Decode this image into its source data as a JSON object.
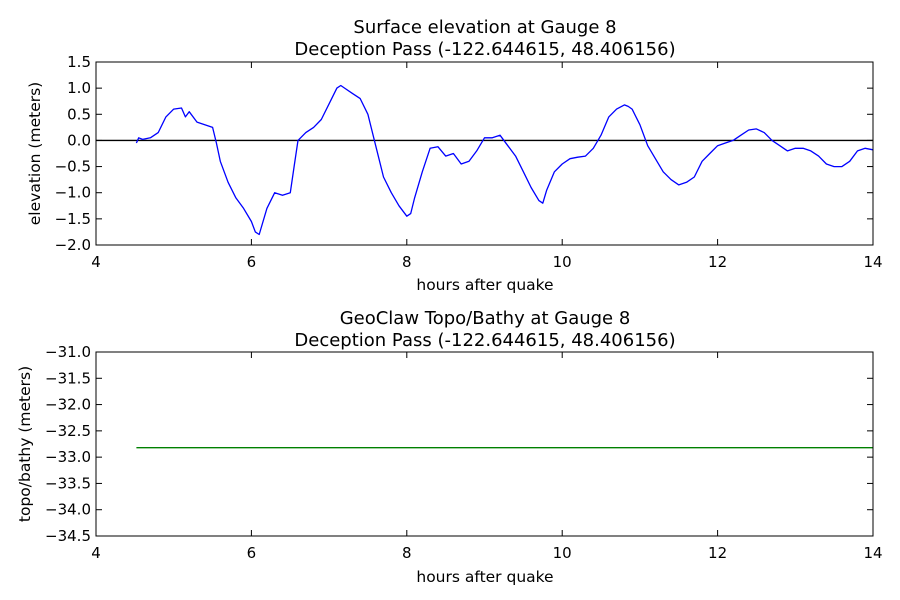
{
  "chart_data": [
    {
      "type": "line",
      "title": "Surface elevation at Gauge 8",
      "subtitle": "Deception Pass  (-122.644615, 48.406156)",
      "xlabel": "hours after quake",
      "ylabel": "elevation (meters)",
      "xlim": [
        4,
        14
      ],
      "ylim": [
        -2.0,
        1.5
      ],
      "xticks": [
        "4",
        "6",
        "8",
        "10",
        "12",
        "14"
      ],
      "yticks": [
        "1.5",
        "1.0",
        "0.5",
        "0.0",
        "−0.5",
        "−1.0",
        "−1.5",
        "−2.0"
      ],
      "reference_line": {
        "y": 0.0,
        "color": "#000000"
      },
      "series": [
        {
          "color": "#0000ff",
          "x": [
            4.52,
            4.55,
            4.6,
            4.7,
            4.8,
            4.9,
            5.0,
            5.1,
            5.15,
            5.2,
            5.3,
            5.4,
            5.5,
            5.55,
            5.6,
            5.7,
            5.8,
            5.9,
            6.0,
            6.05,
            6.1,
            6.2,
            6.3,
            6.4,
            6.5,
            6.55,
            6.6,
            6.7,
            6.8,
            6.9,
            7.0,
            7.1,
            7.15,
            7.2,
            7.3,
            7.4,
            7.5,
            7.6,
            7.7,
            7.8,
            7.9,
            8.0,
            8.05,
            8.1,
            8.2,
            8.3,
            8.4,
            8.5,
            8.6,
            8.7,
            8.8,
            8.9,
            9.0,
            9.1,
            9.2,
            9.3,
            9.4,
            9.5,
            9.6,
            9.7,
            9.75,
            9.8,
            9.9,
            10.0,
            10.1,
            10.2,
            10.3,
            10.4,
            10.5,
            10.6,
            10.7,
            10.8,
            10.85,
            10.9,
            11.0,
            11.1,
            11.2,
            11.3,
            11.4,
            11.5,
            11.6,
            11.7,
            11.8,
            11.9,
            12.0,
            12.1,
            12.2,
            12.3,
            12.4,
            12.5,
            12.6,
            12.7,
            12.8,
            12.9,
            13.0,
            13.1,
            13.2,
            13.3,
            13.4,
            13.5,
            13.6,
            13.7,
            13.8,
            13.9,
            14.0
          ],
          "y": [
            -0.05,
            0.05,
            0.02,
            0.05,
            0.15,
            0.45,
            0.6,
            0.62,
            0.45,
            0.55,
            0.35,
            0.3,
            0.25,
            -0.05,
            -0.4,
            -0.8,
            -1.1,
            -1.3,
            -1.55,
            -1.75,
            -1.8,
            -1.3,
            -1.0,
            -1.05,
            -1.0,
            -0.5,
            0.0,
            0.15,
            0.25,
            0.4,
            0.7,
            1.0,
            1.05,
            1.0,
            0.9,
            0.8,
            0.5,
            -0.1,
            -0.7,
            -1.0,
            -1.25,
            -1.45,
            -1.4,
            -1.1,
            -0.6,
            -0.15,
            -0.12,
            -0.3,
            -0.25,
            -0.45,
            -0.4,
            -0.2,
            0.05,
            0.05,
            0.1,
            -0.1,
            -0.3,
            -0.6,
            -0.9,
            -1.15,
            -1.2,
            -0.95,
            -0.6,
            -0.45,
            -0.35,
            -0.32,
            -0.3,
            -0.15,
            0.1,
            0.45,
            0.6,
            0.68,
            0.65,
            0.6,
            0.3,
            -0.1,
            -0.35,
            -0.6,
            -0.75,
            -0.85,
            -0.8,
            -0.7,
            -0.4,
            -0.25,
            -0.1,
            -0.05,
            0.0,
            0.1,
            0.2,
            0.22,
            0.15,
            0.0,
            -0.1,
            -0.2,
            -0.15,
            -0.15,
            -0.2,
            -0.3,
            -0.45,
            -0.5,
            -0.5,
            -0.4,
            -0.2,
            -0.15,
            -0.18
          ]
        }
      ]
    },
    {
      "type": "line",
      "title": "GeoClaw Topo/Bathy at Gauge 8",
      "subtitle": "Deception Pass  (-122.644615, 48.406156)",
      "xlabel": "hours after quake",
      "ylabel": "topo/bathy (meters)",
      "xlim": [
        4,
        14
      ],
      "ylim": [
        -34.5,
        -31.0
      ],
      "xticks": [
        "4",
        "6",
        "8",
        "10",
        "12",
        "14"
      ],
      "yticks": [
        "−31.0",
        "−31.5",
        "−32.0",
        "−32.5",
        "−33.0",
        "−33.5",
        "−34.0",
        "−34.5"
      ],
      "series": [
        {
          "color": "#008000",
          "x": [
            4.52,
            14.0
          ],
          "y": [
            -32.82,
            -32.82
          ]
        }
      ]
    }
  ]
}
